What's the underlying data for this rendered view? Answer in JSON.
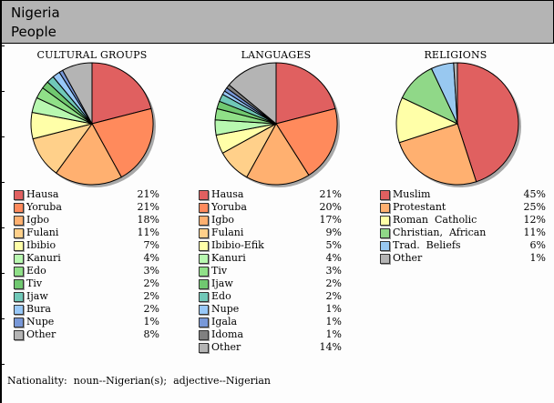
{
  "header": {
    "country": "Nigeria",
    "section": "People"
  },
  "footer": {
    "nationality": "Nationality:  noun--Nigerian(s);  adjective--Nigerian"
  },
  "chart_data": [
    {
      "type": "pie",
      "title": "CULTURAL GROUPS",
      "categories": [
        "Hausa",
        "Yoruba",
        "Igbo",
        "Fulani",
        "Ibibio",
        "Kanuri",
        "Edo",
        "Tiv",
        "Ijaw",
        "Bura",
        "Nupe",
        "Other"
      ],
      "values": [
        21,
        21,
        18,
        11,
        7,
        4,
        3,
        2,
        2,
        2,
        1,
        8
      ],
      "labels": [
        "21%",
        "21%",
        "18%",
        "11%",
        "7%",
        "4%",
        "3%",
        "2%",
        "2%",
        "2%",
        "1%",
        "8%"
      ],
      "colors": [
        "#e06060",
        "#ff8a5c",
        "#ffb070",
        "#ffd08a",
        "#ffffa8",
        "#b8f8b0",
        "#90e088",
        "#70c870",
        "#70c8b8",
        "#98c8f8",
        "#7898d8",
        "#b4b4b4"
      ]
    },
    {
      "type": "pie",
      "title": "LANGUAGES",
      "categories": [
        "Hausa",
        "Yoruba",
        "Igbo",
        "Fulani",
        "Ibibio-Efik",
        "Kanuri",
        "Tiv",
        "Ijaw",
        "Edo",
        "Nupe",
        "Igala",
        "Idoma",
        "Other"
      ],
      "values": [
        21,
        20,
        17,
        9,
        5,
        4,
        3,
        2,
        2,
        1,
        1,
        1,
        14
      ],
      "labels": [
        "21%",
        "20%",
        "17%",
        "9%",
        "5%",
        "4%",
        "3%",
        "2%",
        "2%",
        "1%",
        "1%",
        "1%",
        "14%"
      ],
      "colors": [
        "#e06060",
        "#ff8a5c",
        "#ffb070",
        "#ffd08a",
        "#ffffa8",
        "#b8f8b0",
        "#90e088",
        "#70c870",
        "#70c8b8",
        "#98c8f8",
        "#7898d8",
        "#808080",
        "#b4b4b4"
      ]
    },
    {
      "type": "pie",
      "title": "RELIGIONS",
      "categories": [
        "Muslim",
        "Protestant",
        "Roman  Catholic",
        "Christian,  African",
        "Trad.  Beliefs",
        "Other"
      ],
      "values": [
        45,
        25,
        12,
        11,
        6,
        1
      ],
      "labels": [
        "45%",
        "25%",
        "12%",
        "11%",
        "6%",
        "1%"
      ],
      "colors": [
        "#e06060",
        "#ffb070",
        "#ffffa8",
        "#90d888",
        "#98c8f0",
        "#b4b4b4"
      ]
    }
  ]
}
